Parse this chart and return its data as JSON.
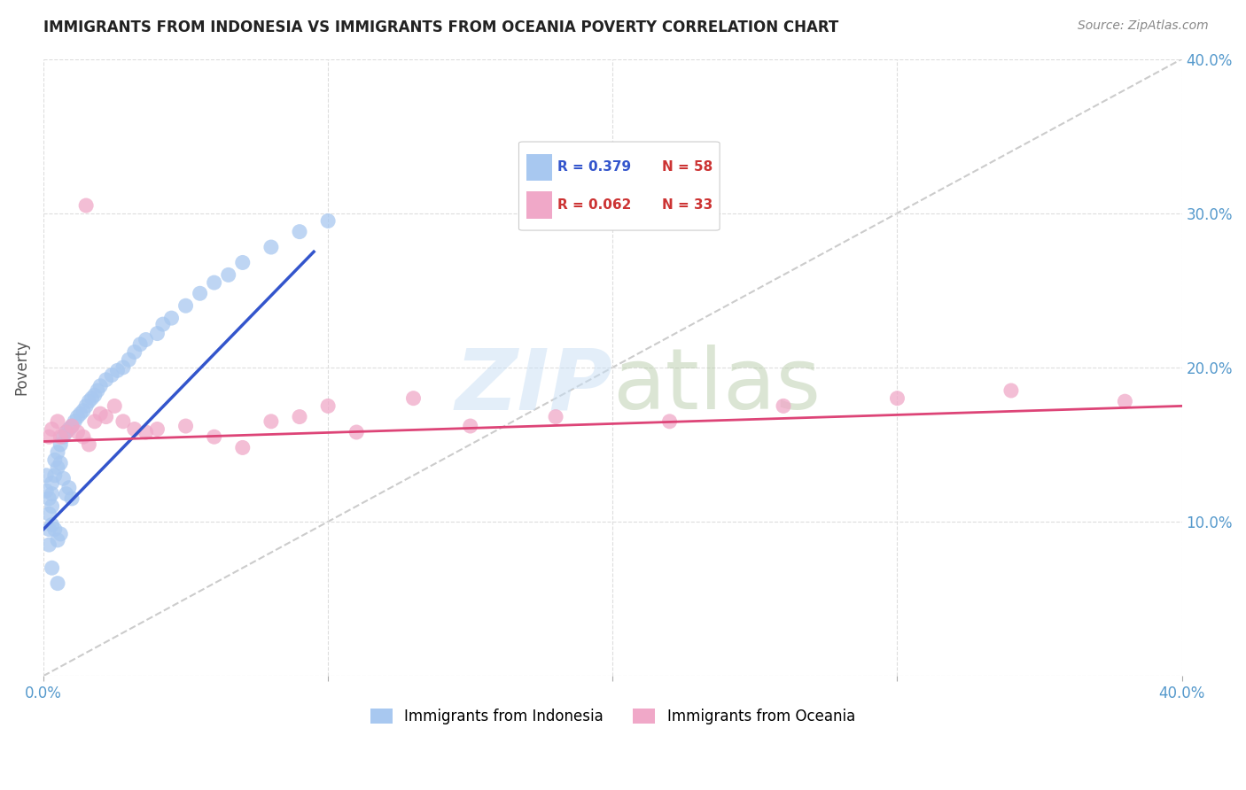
{
  "title": "IMMIGRANTS FROM INDONESIA VS IMMIGRANTS FROM OCEANIA POVERTY CORRELATION CHART",
  "source": "Source: ZipAtlas.com",
  "ylabel": "Poverty",
  "xlim": [
    0.0,
    0.4
  ],
  "ylim": [
    0.0,
    0.4
  ],
  "legend_R1": "R = 0.379",
  "legend_N1": "N = 58",
  "legend_R2": "R = 0.062",
  "legend_N2": "N = 33",
  "color_blue": "#a8c8f0",
  "color_pink": "#f0a8c8",
  "color_blue_line": "#3355cc",
  "color_pink_line": "#dd4477",
  "color_diagonal": "#cccccc",
  "indonesia_x": [
    0.001,
    0.001,
    0.002,
    0.002,
    0.002,
    0.002,
    0.003,
    0.003,
    0.003,
    0.003,
    0.004,
    0.004,
    0.004,
    0.005,
    0.005,
    0.005,
    0.006,
    0.006,
    0.006,
    0.007,
    0.007,
    0.008,
    0.008,
    0.009,
    0.009,
    0.01,
    0.01,
    0.011,
    0.012,
    0.013,
    0.014,
    0.015,
    0.016,
    0.017,
    0.018,
    0.019,
    0.02,
    0.022,
    0.024,
    0.026,
    0.028,
    0.03,
    0.032,
    0.034,
    0.036,
    0.04,
    0.042,
    0.045,
    0.05,
    0.055,
    0.06,
    0.065,
    0.07,
    0.08,
    0.09,
    0.1,
    0.005,
    0.003
  ],
  "indonesia_y": [
    0.13,
    0.12,
    0.115,
    0.105,
    0.095,
    0.085,
    0.125,
    0.118,
    0.11,
    0.098,
    0.14,
    0.13,
    0.095,
    0.145,
    0.135,
    0.088,
    0.15,
    0.138,
    0.092,
    0.155,
    0.128,
    0.158,
    0.118,
    0.16,
    0.122,
    0.162,
    0.115,
    0.165,
    0.168,
    0.17,
    0.172,
    0.175,
    0.178,
    0.18,
    0.182,
    0.185,
    0.188,
    0.192,
    0.195,
    0.198,
    0.2,
    0.205,
    0.21,
    0.215,
    0.218,
    0.222,
    0.228,
    0.232,
    0.24,
    0.248,
    0.255,
    0.26,
    0.268,
    0.278,
    0.288,
    0.295,
    0.06,
    0.07
  ],
  "oceania_x": [
    0.002,
    0.003,
    0.005,
    0.006,
    0.008,
    0.01,
    0.012,
    0.014,
    0.016,
    0.018,
    0.02,
    0.022,
    0.025,
    0.028,
    0.032,
    0.036,
    0.04,
    0.05,
    0.06,
    0.07,
    0.08,
    0.09,
    0.1,
    0.11,
    0.13,
    0.15,
    0.18,
    0.22,
    0.26,
    0.3,
    0.34,
    0.38,
    0.015
  ],
  "oceania_y": [
    0.155,
    0.16,
    0.165,
    0.155,
    0.158,
    0.162,
    0.158,
    0.155,
    0.15,
    0.165,
    0.17,
    0.168,
    0.175,
    0.165,
    0.16,
    0.158,
    0.16,
    0.162,
    0.155,
    0.148,
    0.165,
    0.168,
    0.175,
    0.158,
    0.18,
    0.162,
    0.168,
    0.165,
    0.175,
    0.18,
    0.185,
    0.178,
    0.305
  ],
  "indo_line_x": [
    0.0,
    0.095
  ],
  "indo_line_y": [
    0.095,
    0.275
  ],
  "oce_line_x": [
    0.0,
    0.4
  ],
  "oce_line_y": [
    0.152,
    0.175
  ]
}
